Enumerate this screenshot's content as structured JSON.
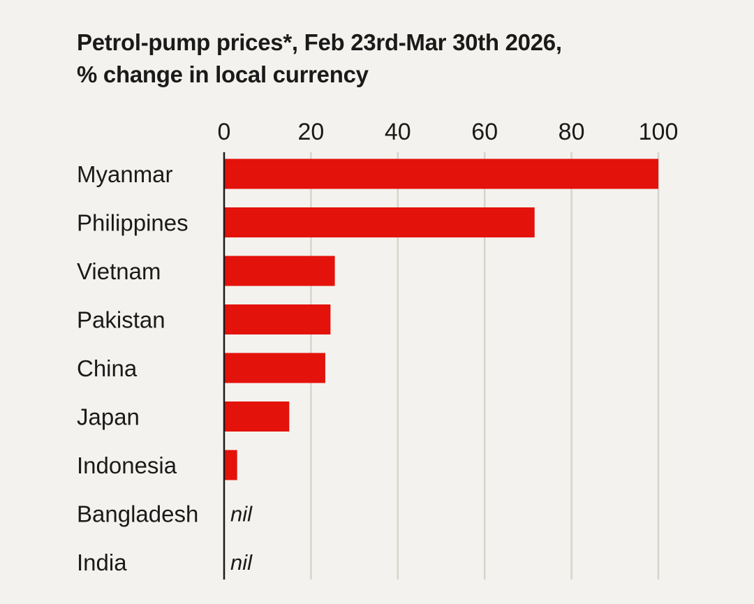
{
  "title_line1": "Petrol-pump prices*, Feb 23rd-Mar 30th 2026,",
  "title_line2": "% change in local currency",
  "colors": {
    "background": "#f4f2ee",
    "bar": "#e3120b",
    "gridline": "#d7d4cd",
    "axis": "#1a1a1a",
    "text": "#1a1a1a"
  },
  "chart_data": {
    "type": "bar",
    "orientation": "horizontal",
    "title": "Petrol-pump prices*, Feb 23rd-Mar 30th 2026, % change in local currency",
    "xlim": [
      0,
      100
    ],
    "x_ticks": [
      0,
      20,
      40,
      60,
      80,
      100
    ],
    "x_tick_labels": [
      "0",
      "20",
      "40",
      "60",
      "80",
      "100"
    ],
    "x_axis_position": "top",
    "grid": true,
    "categories": [
      "Myanmar",
      "Philippines",
      "Vietnam",
      "Pakistan",
      "China",
      "Japan",
      "Indonesia",
      "Bangladesh",
      "India"
    ],
    "values": [
      100,
      71.5,
      25.5,
      24.5,
      23.3,
      15,
      3,
      0,
      0
    ],
    "value_labels": [
      "",
      "",
      "",
      "",
      "",
      "",
      "",
      "nil",
      "nil"
    ]
  }
}
